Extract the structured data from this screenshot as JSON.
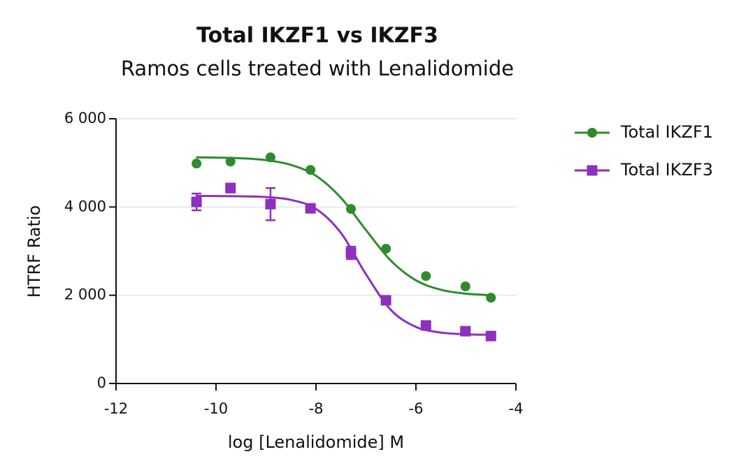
{
  "chart_data": {
    "type": "scatter",
    "title": "Total IKZF1 vs IKZF3",
    "subtitle": "Ramos cells treated with Lenalidomide",
    "x_label": "log [Lenalidomide] M",
    "y_label": "HTRF Ratio",
    "xlim": [
      -12,
      -4
    ],
    "xticks": [
      -12,
      -10,
      -8,
      -6,
      -4
    ],
    "ylim": [
      0,
      6000
    ],
    "yticks": [
      0,
      {
        "value": 2000,
        "label": "2 000"
      },
      {
        "value": 4000,
        "label": "4 000"
      },
      {
        "value": 6000,
        "label": "6 000"
      }
    ],
    "grid": true,
    "legend": "right",
    "x": [
      -10.39,
      -9.71,
      -8.91,
      -8.11,
      -7.3,
      -6.6,
      -5.8,
      -5.01,
      -4.5
    ],
    "fit_x": [
      -10.4,
      -10,
      -9.5,
      -9,
      -8.5,
      -8,
      -7.5,
      -7,
      -6.5,
      -6,
      -5.5,
      -5,
      -4.5
    ],
    "series": [
      {
        "name": "Total IKZF1",
        "color": "#2e8b2e",
        "marker": "circle",
        "values": [
          4985,
          5030,
          5125,
          4840,
          3955,
          3055,
          2435,
          2200,
          1945
        ],
        "fit_values": [
          5126,
          5120,
          5104,
          5062,
          4955,
          4707,
          4208,
          3478,
          2782,
          2338,
          2124,
          2036,
          2001
        ]
      },
      {
        "name": "Total IKZF3",
        "color": "#8e2fbf",
        "marker": "square",
        "values": [
          4115,
          4430,
          4065,
          3970,
          2960,
          1885,
          1315,
          1185,
          1075
        ],
        "errors": [
          190,
          100,
          365,
          90,
          140,
          60,
          80,
          50,
          40
        ],
        "fit_values": [
          4250,
          4248,
          4243,
          4225,
          4161,
          3958,
          3411,
          2476,
          1665,
          1283,
          1154,
          1115,
          1104
        ]
      }
    ]
  }
}
